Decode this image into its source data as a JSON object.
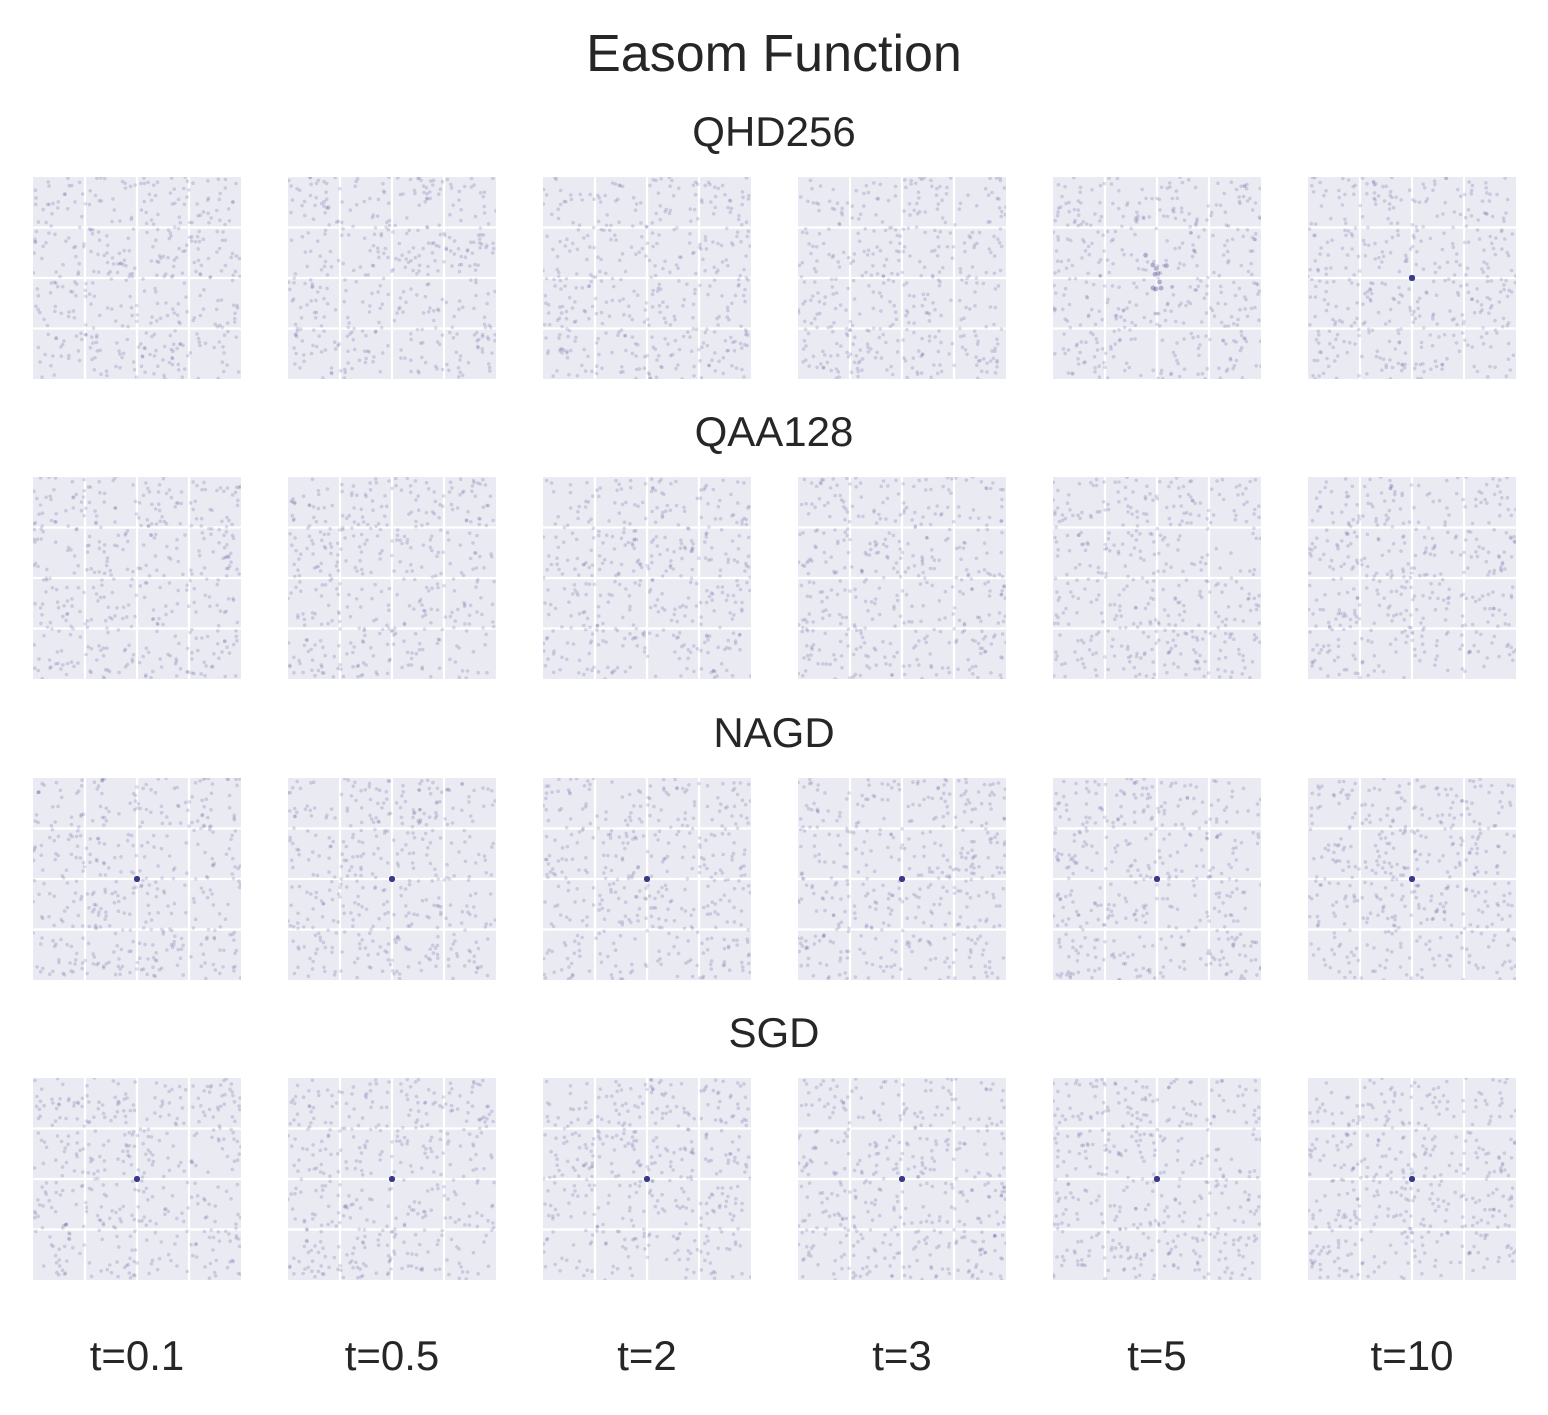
{
  "title": "Easom Function",
  "chart_data": {
    "type": "scatter",
    "title": "Easom Function",
    "xlabel": "",
    "ylabel": "",
    "grid": true,
    "marker_color": "#3b3b8a",
    "background_color": "#eaeaf2",
    "grid_color": "#ffffff",
    "columns": [
      "t=0.1",
      "t=0.5",
      "t=2",
      "t=3",
      "t=5",
      "t=10"
    ],
    "rows": [
      {
        "name": "QHD256",
        "clusters": [
          null,
          null,
          null,
          null,
          {
            "x": 0.5,
            "y": 0.5,
            "spread": 0.04,
            "fraction": 0.12
          },
          {
            "x": 0.5,
            "y": 0.5,
            "spread": 0.0,
            "fraction": 0.25
          }
        ]
      },
      {
        "name": "QAA128",
        "clusters": [
          null,
          null,
          null,
          null,
          null,
          null
        ]
      },
      {
        "name": "NAGD",
        "clusters": [
          {
            "x": 0.5,
            "y": 0.5,
            "spread": 0.0,
            "fraction": 0.03
          },
          {
            "x": 0.5,
            "y": 0.5,
            "spread": 0.0,
            "fraction": 0.03
          },
          {
            "x": 0.5,
            "y": 0.5,
            "spread": 0.0,
            "fraction": 0.03
          },
          {
            "x": 0.5,
            "y": 0.5,
            "spread": 0.0,
            "fraction": 0.03
          },
          {
            "x": 0.5,
            "y": 0.5,
            "spread": 0.0,
            "fraction": 0.03
          },
          {
            "x": 0.5,
            "y": 0.5,
            "spread": 0.0,
            "fraction": 0.03
          }
        ]
      },
      {
        "name": "SGD",
        "clusters": [
          {
            "x": 0.5,
            "y": 0.5,
            "spread": 0.0,
            "fraction": 0.02
          },
          {
            "x": 0.5,
            "y": 0.5,
            "spread": 0.0,
            "fraction": 0.02
          },
          {
            "x": 0.5,
            "y": 0.5,
            "spread": 0.0,
            "fraction": 0.02
          },
          {
            "x": 0.5,
            "y": 0.5,
            "spread": 0.0,
            "fraction": 0.02
          },
          {
            "x": 0.5,
            "y": 0.5,
            "spread": 0.0,
            "fraction": 0.02
          },
          {
            "x": 0.5,
            "y": 0.5,
            "spread": 0.0,
            "fraction": 0.02
          }
        ]
      }
    ]
  }
}
